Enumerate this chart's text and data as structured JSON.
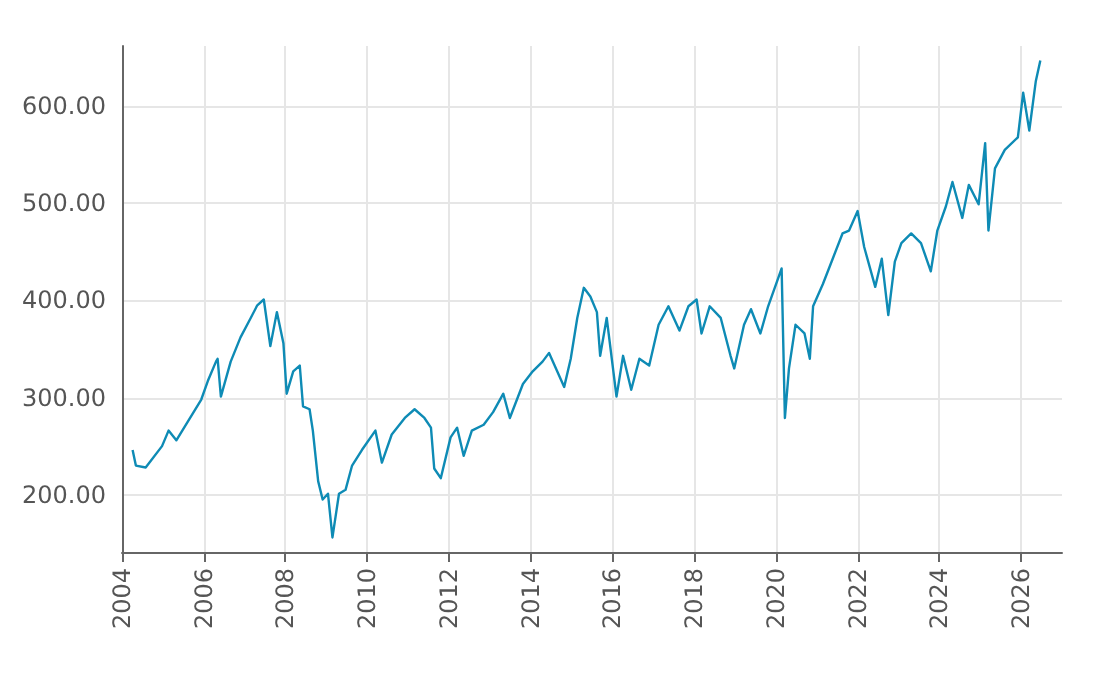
{
  "chart_data": {
    "type": "line",
    "x": [
      2004.26,
      2004.34,
      2004.58,
      2004.98,
      2005.14,
      2005.33,
      2005.94,
      2006.1,
      2006.3,
      2006.34,
      2006.42,
      2006.66,
      2006.9,
      2007.15,
      2007.31,
      2007.47,
      2007.63,
      2007.79,
      2007.95,
      2008.03,
      2008.19,
      2008.35,
      2008.43,
      2008.59,
      2008.67,
      2008.8,
      2008.91,
      2009.04,
      2009.15,
      2009.31,
      2009.47,
      2009.63,
      2009.87,
      2010.2,
      2010.36,
      2010.6,
      2010.92,
      2011.16,
      2011.4,
      2011.56,
      2011.64,
      2011.8,
      2012.04,
      2012.2,
      2012.36,
      2012.56,
      2012.85,
      2013.08,
      2013.33,
      2013.49,
      2013.81,
      2014.05,
      2014.29,
      2014.45,
      2014.82,
      2014.98,
      2015.14,
      2015.3,
      2015.46,
      2015.62,
      2015.7,
      2015.86,
      2016.1,
      2016.26,
      2016.46,
      2016.66,
      2016.9,
      2017.13,
      2017.37,
      2017.64,
      2017.86,
      2018.06,
      2018.18,
      2018.38,
      2018.65,
      2018.89,
      2018.98,
      2019.22,
      2019.39,
      2019.62,
      2019.81,
      2020.03,
      2020.14,
      2020.22,
      2020.32,
      2020.48,
      2020.7,
      2020.83,
      2020.91,
      2021.15,
      2021.39,
      2021.63,
      2021.79,
      2022.0,
      2022.16,
      2022.43,
      2022.59,
      2022.75,
      2022.91,
      2023.07,
      2023.31,
      2023.55,
      2023.79,
      2023.95,
      2024.16,
      2024.32,
      2024.56,
      2024.72,
      2024.96,
      2025.12,
      2025.2,
      2025.36,
      2025.6,
      2025.92,
      2026.05,
      2026.2,
      2026.36,
      2026.47
    ],
    "series": [
      {
        "color": "#0e8bb5",
        "values": [
          246,
          230,
          228,
          250,
          266,
          256,
          298,
          317,
          337,
          340,
          301,
          337,
          362,
          382,
          395,
          401,
          353,
          388,
          356,
          304,
          327,
          333,
          291,
          288,
          266,
          214,
          195,
          201,
          156,
          201,
          205,
          230,
          246,
          266,
          233,
          262,
          279,
          288,
          279,
          269,
          227,
          217,
          259,
          269,
          240,
          266,
          272,
          285,
          304,
          279,
          314,
          327,
          337,
          346,
          311,
          340,
          382,
          413,
          404,
          388,
          343,
          382,
          301,
          343,
          308,
          340,
          333,
          375,
          394,
          369,
          394,
          401,
          366,
          394,
          382,
          343,
          330,
          375,
          391,
          366,
          394,
          420,
          433,
          279,
          330,
          375,
          366,
          340,
          394,
          417,
          443,
          469,
          472,
          492,
          455,
          414,
          443,
          385,
          440,
          459,
          469,
          459,
          430,
          472,
          497,
          522,
          485,
          519,
          499,
          562,
          472,
          536,
          555,
          568,
          614,
          575,
          626,
          647
        ]
      }
    ],
    "xlim": [
      2004,
      2027
    ],
    "xticks": [
      2004,
      2006,
      2008,
      2010,
      2012,
      2014,
      2016,
      2018,
      2020,
      2022,
      2024,
      2026
    ],
    "ylim": [
      141,
      662
    ],
    "yticks": [
      {
        "value": 200,
        "label": "200.00"
      },
      {
        "value": 300,
        "label": "300.00"
      },
      {
        "value": 400,
        "label": "400.00"
      },
      {
        "value": 500,
        "label": "500.00"
      },
      {
        "value": 600,
        "label": "600.00"
      }
    ],
    "grid": true,
    "marker": "none",
    "line_style": "solid"
  }
}
